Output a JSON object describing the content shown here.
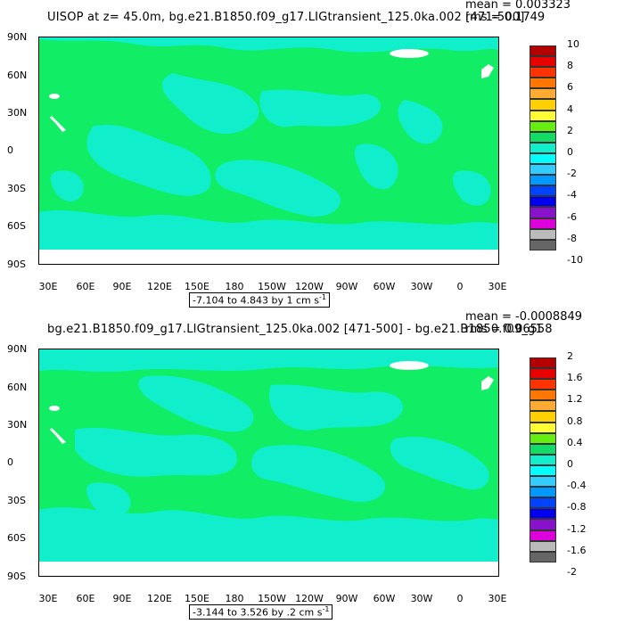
{
  "panels": [
    {
      "title": "UISOP at z=  45.0m, bg.e21.B1850.f09_g17.LIGtransient_125.0ka.002 [471-500]",
      "mean": "mean = 0.003323",
      "rms": "rms = 0.1749",
      "range_text": "-7.104 to 4.843 by 1 cm s",
      "range_unit_exp": "-1",
      "colorbar_labels": [
        "10",
        "8",
        "6",
        "4",
        "2",
        "0",
        "-2",
        "-4",
        "-6",
        "-8",
        "-10"
      ],
      "colorbar_colors": [
        "#b30000",
        "#e60000",
        "#ff3300",
        "#ff7700",
        "#ffaa33",
        "#ffd000",
        "#ffff33",
        "#66ee11",
        "#11dd66",
        "#11eecc",
        "#00ffff",
        "#33ccff",
        "#0099ff",
        "#0044ff",
        "#0000ee",
        "#8811cc",
        "#dd00dd",
        "#bbbbbb",
        "#666666"
      ]
    },
    {
      "title": "bg.e21.B1850.f09_g17.LIGtransient_125.0ka.002 [471-500] - bg.e21.B1850.f09_g1",
      "mean": "mean = -0.0008849",
      "rms": "rms = 0.06558",
      "range_text": "-3.144 to 3.526 by .2 cm s",
      "range_unit_exp": "-1",
      "colorbar_labels": [
        "2",
        "1.6",
        "1.2",
        "0.8",
        "0.4",
        "0",
        "-0.4",
        "-0.8",
        "-1.2",
        "-1.6",
        "-2"
      ],
      "colorbar_colors": [
        "#b30000",
        "#e60000",
        "#ff3300",
        "#ff7700",
        "#ffaa33",
        "#ffd000",
        "#ffff33",
        "#66ee11",
        "#11dd66",
        "#11eecc",
        "#00ffff",
        "#33ccff",
        "#0099ff",
        "#0044ff",
        "#0000ee",
        "#8811cc",
        "#dd00dd",
        "#bbbbbb",
        "#666666"
      ]
    }
  ],
  "lat_labels": [
    "90N",
    "60N",
    "30N",
    "0",
    "30S",
    "60S",
    "90S"
  ],
  "lon_labels": [
    "30E",
    "60E",
    "90E",
    "120E",
    "150E",
    "180",
    "150W",
    "120W",
    "90W",
    "60W",
    "30W",
    "0",
    "30E"
  ],
  "map_colors": {
    "ocean_background": "#11ee66",
    "anomaly_patch": "#11eecc",
    "land_mask": "#ffffff"
  }
}
